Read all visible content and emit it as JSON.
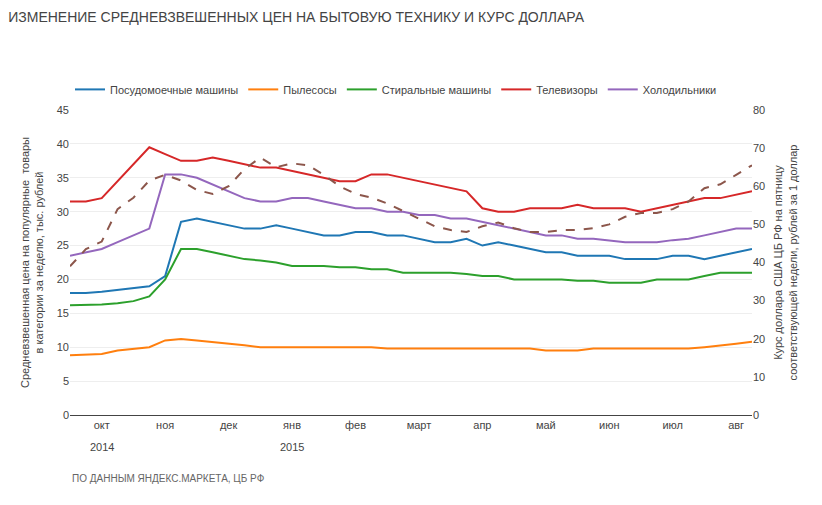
{
  "chart_data": {
    "type": "line",
    "title": "ИЗМЕНЕНИЕ СРЕДНЕВЗВЕШЕННЫХ ЦЕН НА БЫТОВУЮ ТЕХНИКУ И КУРС ДОЛЛАРА",
    "ylabel": "Средневзвешенная цена на популярные  товары\nв категории за неделю, тыс. рублей",
    "y2label": "Курс доллара США ЦБ РФ на пятницу\nсоответствующей недели, рублей за 1 доллар",
    "categories": [
      null,
      null,
      "окт",
      null,
      null,
      null,
      "ноя",
      null,
      null,
      null,
      "дек",
      null,
      null,
      null,
      "янв",
      null,
      null,
      null,
      "фев",
      null,
      null,
      null,
      "март",
      null,
      null,
      null,
      "апр",
      null,
      null,
      null,
      "май",
      null,
      null,
      null,
      "июн",
      null,
      null,
      null,
      "июл",
      null,
      null,
      null,
      "авг",
      null
    ],
    "series": [
      {
        "name": "Посудомоечные машины",
        "values": [
          18.0,
          18.0,
          18.2,
          18.5,
          18.7,
          19.0,
          20.5,
          28.5,
          29.0,
          28.5,
          28.0,
          27.5,
          27.5,
          28.0,
          27.5,
          27.0,
          26.5,
          26.5,
          27.0,
          27.0,
          26.5,
          26.5,
          26.0,
          25.5,
          25.5,
          26.0,
          25.0,
          25.5,
          25.0,
          24.5,
          24.0,
          24.0,
          23.5,
          23.5,
          23.5,
          23.0,
          23.0,
          23.0,
          23.5,
          23.5,
          23.0,
          23.5,
          24.0,
          24.5
        ]
      },
      {
        "name": "Пылесосы",
        "values": [
          8.8,
          8.9,
          9.0,
          9.5,
          9.8,
          10.0,
          11.0,
          11.2,
          11.0,
          10.8,
          10.5,
          10.3,
          10.0,
          10.0,
          10.0,
          10.0,
          10.0,
          10.0,
          10.0,
          10.0,
          9.8,
          9.8,
          9.8,
          9.8,
          9.8,
          9.8,
          9.8,
          9.8,
          9.8,
          9.8,
          9.5,
          9.5,
          9.5,
          9.8,
          9.8,
          9.8,
          9.8,
          9.8,
          9.8,
          9.8,
          10.0,
          10.2,
          10.5,
          10.8
        ]
      },
      {
        "name": "Стиральные машины",
        "values": [
          16.2,
          16.2,
          16.3,
          16.5,
          16.8,
          17.5,
          20.0,
          24.5,
          24.5,
          24.0,
          23.5,
          23.0,
          22.8,
          22.5,
          22.0,
          22.0,
          22.0,
          21.8,
          21.8,
          21.5,
          21.5,
          21.0,
          21.0,
          21.0,
          21.0,
          20.8,
          20.5,
          20.5,
          20.0,
          20.0,
          20.0,
          20.0,
          19.8,
          19.8,
          19.5,
          19.5,
          19.5,
          20.0,
          20.0,
          20.0,
          20.5,
          21.0,
          21.0,
          21.0
        ]
      },
      {
        "name": "Телевизоры",
        "values": [
          31.5,
          31.5,
          32.0,
          34.5,
          37.0,
          39.5,
          38.5,
          37.5,
          37.5,
          38.0,
          37.5,
          37.0,
          36.5,
          36.5,
          36.0,
          35.5,
          35.0,
          34.5,
          34.5,
          35.5,
          35.5,
          35.0,
          34.5,
          34.0,
          33.5,
          33.0,
          30.5,
          30.0,
          30.0,
          30.5,
          30.5,
          30.5,
          31.0,
          30.5,
          30.5,
          30.5,
          30.0,
          30.5,
          31.0,
          31.5,
          32.0,
          32.0,
          32.5,
          33.0
        ]
      },
      {
        "name": "Холодильники",
        "values": [
          23.5,
          24.0,
          24.5,
          25.5,
          26.5,
          27.5,
          35.5,
          35.5,
          35.0,
          34.0,
          33.0,
          32.0,
          31.5,
          31.5,
          32.0,
          32.0,
          31.5,
          31.0,
          30.5,
          30.5,
          30.0,
          30.0,
          29.5,
          29.5,
          29.0,
          29.0,
          28.5,
          28.0,
          27.5,
          27.0,
          26.5,
          26.5,
          26.0,
          26.0,
          25.8,
          25.5,
          25.5,
          25.5,
          25.8,
          26.0,
          26.5,
          27.0,
          27.5,
          27.5
        ]
      },
      {
        "axis": "y2",
        "line_style": "dashed",
        "values": [
          39.0,
          43.5,
          45.5,
          54.0,
          57.0,
          61.5,
          63.0,
          61.5,
          59.0,
          58.0,
          60.0,
          64.5,
          67.5,
          65.0,
          66.0,
          65.5,
          63.0,
          60.0,
          58.0,
          57.0,
          55.5,
          53.5,
          51.5,
          49.5,
          48.5,
          48.0,
          49.5,
          50.5,
          49.0,
          48.0,
          48.0,
          48.5,
          48.5,
          49.0,
          50.0,
          52.0,
          53.0,
          53.0,
          54.0,
          56.0,
          59.5,
          60.5,
          63.0,
          65.5
        ]
      }
    ],
    "ylim": [
      0,
      45
    ],
    "yticks": [
      0,
      5,
      10,
      15,
      20,
      25,
      30,
      35,
      40,
      45
    ],
    "y2lim": [
      0,
      80
    ],
    "y2ticks": [
      0,
      10,
      20,
      30,
      40,
      50,
      60,
      70,
      80
    ],
    "grid": true,
    "legend": "upper left",
    "annotations": [
      {
        "text": "2014",
        "at": "окт"
      },
      {
        "text": "2015",
        "at": "янв"
      },
      {
        "text": "ПО ДАННЫМ ЯНДЕКС.МАРКЕТА, ЦБ РФ"
      }
    ]
  }
}
